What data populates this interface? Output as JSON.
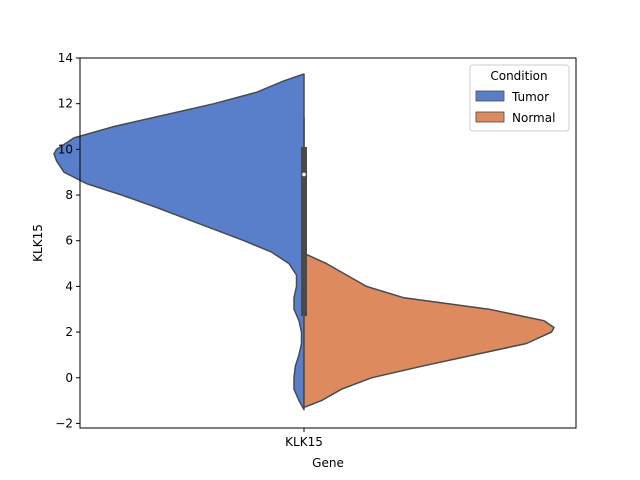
{
  "chart_data": {
    "type": "violin",
    "title": "",
    "xlabel": "Gene",
    "ylabel": "KLK15",
    "categories": [
      "KLK15"
    ],
    "ylim": [
      -2.2,
      14
    ],
    "yticks": [
      -2,
      0,
      2,
      4,
      6,
      8,
      10,
      12,
      14
    ],
    "ytick_labels": [
      "−2",
      "0",
      "2",
      "4",
      "6",
      "8",
      "10",
      "12",
      "14"
    ],
    "grid": false,
    "split": true,
    "legend": {
      "title": "Condition",
      "position": "top-right",
      "entries": [
        "Tumor",
        "Normal"
      ]
    },
    "series": [
      {
        "name": "Tumor",
        "side": "left",
        "color": "#5a7fca",
        "range": [
          -1.4,
          13.3
        ],
        "density_profile": [
          [
            -1.4,
            0.0
          ],
          [
            -1.0,
            0.02
          ],
          [
            -0.5,
            0.04
          ],
          [
            0.0,
            0.04
          ],
          [
            0.5,
            0.035
          ],
          [
            1.0,
            0.02
          ],
          [
            1.5,
            0.01
          ],
          [
            2.0,
            0.01
          ],
          [
            2.5,
            0.02
          ],
          [
            3.0,
            0.04
          ],
          [
            3.5,
            0.04
          ],
          [
            4.0,
            0.03
          ],
          [
            4.5,
            0.03
          ],
          [
            5.0,
            0.06
          ],
          [
            5.5,
            0.13
          ],
          [
            6.0,
            0.24
          ],
          [
            6.5,
            0.36
          ],
          [
            7.0,
            0.48
          ],
          [
            7.5,
            0.6
          ],
          [
            8.0,
            0.73
          ],
          [
            8.5,
            0.87
          ],
          [
            9.0,
            0.96
          ],
          [
            9.5,
            0.99
          ],
          [
            9.8,
            1.0
          ],
          [
            10.0,
            0.99
          ],
          [
            10.5,
            0.92
          ],
          [
            11.0,
            0.76
          ],
          [
            11.5,
            0.56
          ],
          [
            12.0,
            0.36
          ],
          [
            12.5,
            0.19
          ],
          [
            13.0,
            0.08
          ],
          [
            13.3,
            0.0
          ]
        ]
      },
      {
        "name": "Normal",
        "side": "right",
        "color": "#dc8a5e",
        "range": [
          -1.3,
          5.45
        ],
        "density_profile": [
          [
            -1.3,
            0.0
          ],
          [
            -1.0,
            0.07
          ],
          [
            -0.5,
            0.15
          ],
          [
            0.0,
            0.27
          ],
          [
            0.5,
            0.47
          ],
          [
            1.0,
            0.68
          ],
          [
            1.5,
            0.89
          ],
          [
            2.0,
            0.99
          ],
          [
            2.2,
            1.0
          ],
          [
            2.5,
            0.96
          ],
          [
            3.0,
            0.74
          ],
          [
            3.5,
            0.4
          ],
          [
            4.0,
            0.25
          ],
          [
            4.5,
            0.17
          ],
          [
            5.0,
            0.09
          ],
          [
            5.45,
            0.0
          ]
        ]
      }
    ],
    "inner_box": {
      "whisker": [
        2.7,
        11.4
      ],
      "quartiles": [
        2.7,
        10.1
      ],
      "median": 8.9
    }
  }
}
